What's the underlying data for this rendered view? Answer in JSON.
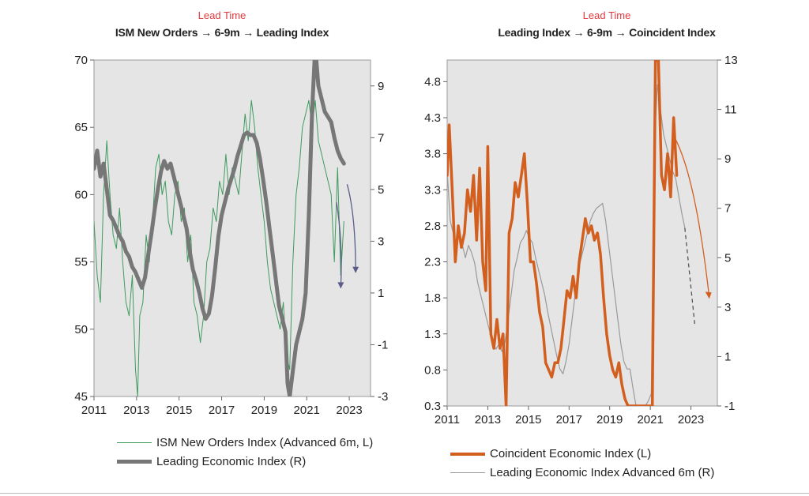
{
  "chart_data": [
    {
      "type": "line",
      "lead_time_label": "Lead Time",
      "title": "ISM New Orders → 6-9m → Leading Index",
      "x_ticks": [
        "2011",
        "2013",
        "2015",
        "2017",
        "2019",
        "2021",
        "2023"
      ],
      "xlim": [
        2011,
        2024
      ],
      "y_left": {
        "ylim": [
          45,
          70
        ],
        "ticks": [
          "45",
          "50",
          "55",
          "60",
          "65",
          "70"
        ]
      },
      "y_right": {
        "ylim": [
          -3,
          10
        ],
        "ticks": [
          "-3",
          "-1",
          "1",
          "3",
          "5",
          "7",
          "9"
        ]
      },
      "grid": false,
      "legend_position": "bottom",
      "series": [
        {
          "name": "ISM New Orders Index (Advanced 6m, L)",
          "axis": "left",
          "color": "#3f9b5e",
          "x": [
            2011.0,
            2011.15,
            2011.3,
            2011.45,
            2011.6,
            2011.75,
            2011.9,
            2012.05,
            2012.2,
            2012.35,
            2012.5,
            2012.65,
            2012.8,
            2012.95,
            2013.05,
            2013.15,
            2013.3,
            2013.45,
            2013.6,
            2013.75,
            2013.9,
            2014.05,
            2014.2,
            2014.35,
            2014.5,
            2014.65,
            2014.8,
            2014.95,
            2015.1,
            2015.25,
            2015.4,
            2015.55,
            2015.7,
            2015.85,
            2016.0,
            2016.15,
            2016.3,
            2016.45,
            2016.6,
            2016.75,
            2016.9,
            2017.05,
            2017.2,
            2017.35,
            2017.5,
            2017.65,
            2017.8,
            2017.95,
            2018.1,
            2018.25,
            2018.4,
            2018.55,
            2018.7,
            2018.85,
            2019.0,
            2019.15,
            2019.3,
            2019.45,
            2019.6,
            2019.75,
            2019.9,
            2020.05,
            2020.2,
            2020.35,
            2020.5,
            2020.65,
            2020.8,
            2020.95,
            2021.1,
            2021.25,
            2021.4,
            2021.55,
            2021.7,
            2021.85,
            2022.0,
            2022.15,
            2022.3,
            2022.45,
            2022.6,
            2022.75
          ],
          "values": [
            58,
            54,
            52,
            60,
            64,
            60,
            57,
            56,
            59,
            55,
            52,
            51,
            54,
            47,
            45,
            51,
            52,
            57,
            55,
            58,
            62,
            63,
            60,
            61,
            58,
            57,
            60,
            61,
            58,
            59,
            55,
            57,
            52,
            51,
            49,
            51,
            55,
            56,
            59,
            58,
            61,
            60,
            63,
            60,
            62,
            61,
            60,
            63,
            66,
            64,
            67,
            65,
            62,
            60,
            58,
            55,
            53,
            52,
            51,
            50,
            52,
            48,
            47,
            55,
            60,
            62,
            65,
            66,
            67,
            65,
            67,
            64,
            63,
            62,
            61,
            60,
            55,
            62,
            54,
            58
          ]
        },
        {
          "name": "Leading Economic Index (R)",
          "axis": "right",
          "color": "#777777",
          "x": [
            2011.0,
            2011.15,
            2011.3,
            2011.45,
            2011.6,
            2011.75,
            2011.9,
            2012.05,
            2012.2,
            2012.35,
            2012.5,
            2012.65,
            2012.8,
            2012.95,
            2013.1,
            2013.25,
            2013.4,
            2013.55,
            2013.7,
            2013.85,
            2014.0,
            2014.15,
            2014.3,
            2014.45,
            2014.6,
            2014.75,
            2014.9,
            2015.05,
            2015.2,
            2015.35,
            2015.5,
            2015.65,
            2015.8,
            2015.95,
            2016.1,
            2016.25,
            2016.4,
            2016.55,
            2016.7,
            2016.85,
            2017.0,
            2017.15,
            2017.3,
            2017.45,
            2017.6,
            2017.75,
            2017.9,
            2018.05,
            2018.2,
            2018.35,
            2018.5,
            2018.65,
            2018.8,
            2018.95,
            2019.1,
            2019.25,
            2019.4,
            2019.55,
            2019.7,
            2019.85,
            2020.0,
            2020.1,
            2020.2,
            2020.35,
            2020.5,
            2020.65,
            2020.8,
            2020.95,
            2021.1,
            2021.25,
            2021.4,
            2021.55,
            2021.7,
            2021.85,
            2022.0,
            2022.15,
            2022.3,
            2022.45,
            2022.6,
            2022.75
          ],
          "values": [
            5.8,
            6.5,
            5.5,
            6.0,
            5.0,
            4.0,
            3.8,
            3.5,
            3.2,
            3.0,
            2.6,
            2.4,
            2.0,
            1.8,
            1.5,
            1.2,
            1.6,
            2.5,
            3.3,
            4.2,
            5.0,
            5.7,
            6.1,
            5.8,
            6.0,
            5.5,
            5.0,
            4.5,
            4.0,
            3.5,
            2.6,
            1.9,
            1.5,
            1.0,
            0.4,
            0.0,
            0.2,
            0.9,
            2.0,
            3.2,
            4.0,
            4.5,
            5.0,
            5.4,
            5.8,
            6.3,
            6.7,
            7.1,
            7.2,
            7.1,
            7.1,
            6.8,
            6.2,
            5.4,
            4.5,
            3.5,
            2.5,
            1.5,
            0.5,
            0.0,
            -0.5,
            -2.5,
            -3.0,
            -2.0,
            -1.0,
            -0.5,
            0.0,
            1.0,
            4.0,
            8.0,
            10.5,
            9.0,
            8.5,
            8.0,
            7.8,
            7.6,
            7.0,
            6.5,
            6.2,
            6.0
          ]
        }
      ]
    },
    {
      "type": "line",
      "lead_time_label": "Lead Time",
      "title": "Leading Index → 6-9m → Coincident Index",
      "x_ticks": [
        "2011",
        "2013",
        "2015",
        "2017",
        "2019",
        "2021",
        "2023"
      ],
      "xlim": [
        2011,
        2024.3
      ],
      "y_left": {
        "ylim": [
          0.3,
          5.1
        ],
        "ticks": [
          "0.3",
          "0.8",
          "1.3",
          "1.8",
          "2.3",
          "2.8",
          "3.3",
          "3.8",
          "4.3",
          "4.8"
        ]
      },
      "y_right": {
        "ylim": [
          -1,
          13
        ],
        "ticks": [
          "-1",
          "1",
          "3",
          "5",
          "7",
          "9",
          "11",
          "13"
        ]
      },
      "grid": false,
      "legend_position": "bottom",
      "series": [
        {
          "name": "Coincident Economic Index (L)",
          "axis": "left",
          "color": "#d35f1e",
          "x": [
            2011.0,
            2011.1,
            2011.25,
            2011.4,
            2011.55,
            2011.7,
            2011.85,
            2012.0,
            2012.15,
            2012.3,
            2012.45,
            2012.6,
            2012.75,
            2012.9,
            2013.0,
            2013.15,
            2013.3,
            2013.45,
            2013.6,
            2013.75,
            2013.9,
            2014.05,
            2014.2,
            2014.35,
            2014.5,
            2014.65,
            2014.8,
            2014.95,
            2015.1,
            2015.25,
            2015.4,
            2015.55,
            2015.7,
            2015.85,
            2016.0,
            2016.15,
            2016.3,
            2016.45,
            2016.6,
            2016.75,
            2016.9,
            2017.05,
            2017.2,
            2017.35,
            2017.5,
            2017.65,
            2017.8,
            2017.95,
            2018.1,
            2018.25,
            2018.4,
            2018.55,
            2018.7,
            2018.85,
            2019.0,
            2019.15,
            2019.3,
            2019.45,
            2019.6,
            2019.75,
            2019.9,
            2020.05,
            2020.2,
            2020.35,
            2020.5,
            2020.65,
            2020.8,
            2020.95,
            2021.1,
            2021.25,
            2021.4,
            2021.55,
            2021.7,
            2021.85,
            2022.0,
            2022.15,
            2022.3
          ],
          "values": [
            3.5,
            4.2,
            3.3,
            2.3,
            2.8,
            2.5,
            2.7,
            3.3,
            3.0,
            3.5,
            2.6,
            3.6,
            2.3,
            1.9,
            3.9,
            1.3,
            1.1,
            1.5,
            1.1,
            1.3,
            0.3,
            2.7,
            2.9,
            3.4,
            3.2,
            3.5,
            3.8,
            3.1,
            2.3,
            2.3,
            2.0,
            1.6,
            1.4,
            0.9,
            0.8,
            0.7,
            0.9,
            0.9,
            1.1,
            1.5,
            1.9,
            1.8,
            2.1,
            1.8,
            2.3,
            2.6,
            2.9,
            2.7,
            2.8,
            2.6,
            2.7,
            2.4,
            1.8,
            1.3,
            1.0,
            0.8,
            0.7,
            0.9,
            0.6,
            0.4,
            0.3,
            0.3,
            0.3,
            0.3,
            0.3,
            0.3,
            0.3,
            0.3,
            0.3,
            5.1,
            5.1,
            3.5,
            3.3,
            3.8,
            3.2,
            4.3,
            3.5
          ]
        },
        {
          "name": "Leading Economic Index Advanced 6m (R)",
          "axis": "right",
          "color": "#9a9a9a",
          "x": [
            2011.0,
            2011.15,
            2011.3,
            2011.45,
            2011.6,
            2011.75,
            2011.9,
            2012.05,
            2012.2,
            2012.35,
            2012.5,
            2012.65,
            2012.8,
            2012.95,
            2013.1,
            2013.25,
            2013.4,
            2013.55,
            2013.7,
            2013.85,
            2014.0,
            2014.15,
            2014.3,
            2014.45,
            2014.6,
            2014.75,
            2014.9,
            2015.05,
            2015.2,
            2015.35,
            2015.5,
            2015.65,
            2015.8,
            2015.95,
            2016.1,
            2016.25,
            2016.4,
            2016.55,
            2016.7,
            2016.85,
            2017.0,
            2017.15,
            2017.3,
            2017.45,
            2017.6,
            2017.75,
            2017.9,
            2018.05,
            2018.2,
            2018.35,
            2018.5,
            2018.65,
            2018.8,
            2018.95,
            2019.1,
            2019.25,
            2019.4,
            2019.55,
            2019.7,
            2019.85,
            2020.0,
            2020.15,
            2020.3,
            2020.45,
            2020.6,
            2020.75,
            2020.9,
            2021.05,
            2021.2,
            2021.35,
            2021.5,
            2021.65,
            2021.8,
            2021.95,
            2022.1,
            2022.25,
            2022.4,
            2022.55,
            2022.7
          ],
          "values": [
            8.5,
            6.5,
            6.0,
            5.5,
            6.0,
            5.5,
            5.0,
            5.5,
            5.2,
            4.8,
            4.0,
            3.5,
            3.0,
            2.5,
            2.0,
            1.5,
            1.3,
            1.5,
            1.2,
            1.6,
            2.5,
            3.5,
            4.5,
            5.0,
            5.6,
            5.8,
            6.1,
            5.8,
            5.6,
            5.0,
            4.5,
            4.0,
            3.5,
            2.8,
            2.2,
            1.6,
            1.0,
            0.5,
            0.3,
            0.8,
            1.5,
            2.5,
            3.5,
            4.5,
            5.0,
            5.5,
            6.0,
            6.5,
            6.8,
            7.0,
            7.1,
            7.2,
            6.5,
            5.5,
            4.5,
            3.5,
            2.5,
            1.5,
            0.8,
            0.5,
            0.5,
            -0.3,
            -1.0,
            -1.0,
            -1.0,
            -1.0,
            -0.8,
            -0.5,
            9.5,
            12.0,
            11.0,
            10.0,
            9.5,
            9.0,
            8.5,
            8.2,
            7.5,
            6.8,
            6.2
          ]
        }
      ]
    }
  ]
}
